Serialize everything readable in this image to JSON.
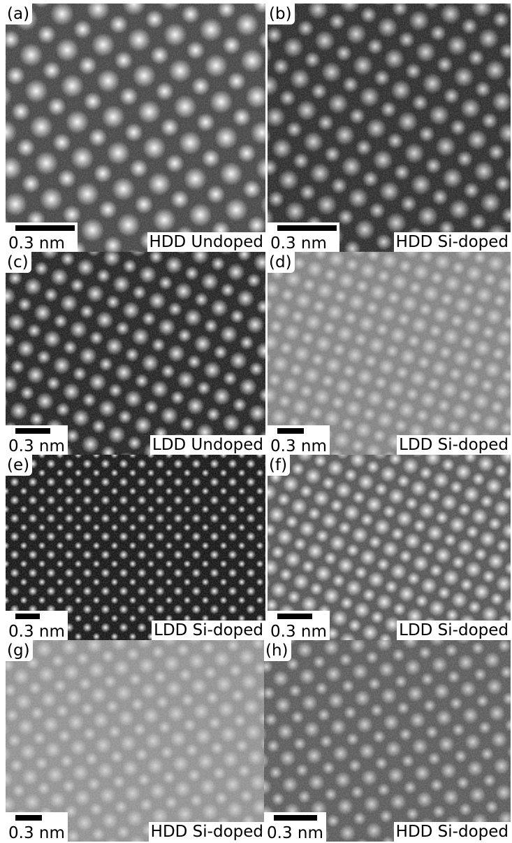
{
  "panels": [
    {
      "label": "(a)",
      "scale": "0.3 nm",
      "caption": "HDD Undoped"
    },
    {
      "label": "(b)",
      "scale": "0.3 nm",
      "caption": "HDD Si-doped"
    },
    {
      "label": "(c)",
      "scale": "0.3 nm",
      "caption": "LDD Undoped"
    },
    {
      "label": "(d)",
      "scale": "0.3 nm",
      "caption": "LDD Si-doped"
    },
    {
      "label": "(e)",
      "scale": "0.3 nm",
      "caption": "LDD Si-doped"
    },
    {
      "label": "(f)",
      "scale": "0.3 nm",
      "caption": "LDD Si-doped"
    },
    {
      "label": "(g)",
      "scale": "0.3 nm",
      "caption": "HDD Si-doped"
    },
    {
      "label": "(h)",
      "scale": "0.3 nm",
      "caption": "HDD Si-doped"
    }
  ]
}
